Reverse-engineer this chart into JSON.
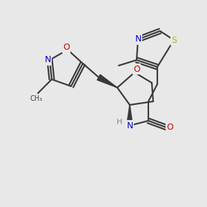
{
  "background_color": "#e8e8e8",
  "fig_size": [
    3.0,
    3.0
  ],
  "dpi": 100,
  "atom_colors": {
    "C": "#3a3a3a",
    "N": "#0000cc",
    "O": "#cc0000",
    "S": "#b8b800",
    "H": "#808080"
  },
  "bond_color": "#3a3a3a",
  "bond_width": 1.6
}
